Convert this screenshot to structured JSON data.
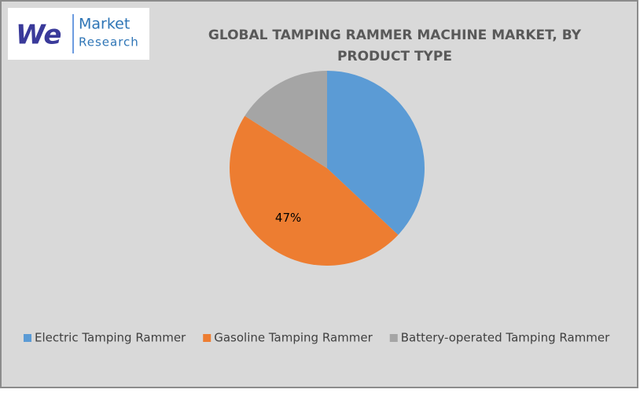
{
  "logo": {
    "mark": "We",
    "line1": "Market",
    "line2": "Research"
  },
  "chart_data": {
    "type": "pie",
    "title": "GLOBAL TAMPING RAMMER MACHINE MARKET, BY PRODUCT TYPE",
    "categories": [
      "Electric Tamping Rammer",
      "Gasoline Tamping Rammer",
      "Battery-operated Tamping Rammer"
    ],
    "values": [
      37,
      47,
      16
    ],
    "value_labels": [
      null,
      "47%",
      null
    ],
    "colors": [
      "#5b9bd5",
      "#ed7d31",
      "#a5a5a5"
    ],
    "legend": "bottom"
  }
}
